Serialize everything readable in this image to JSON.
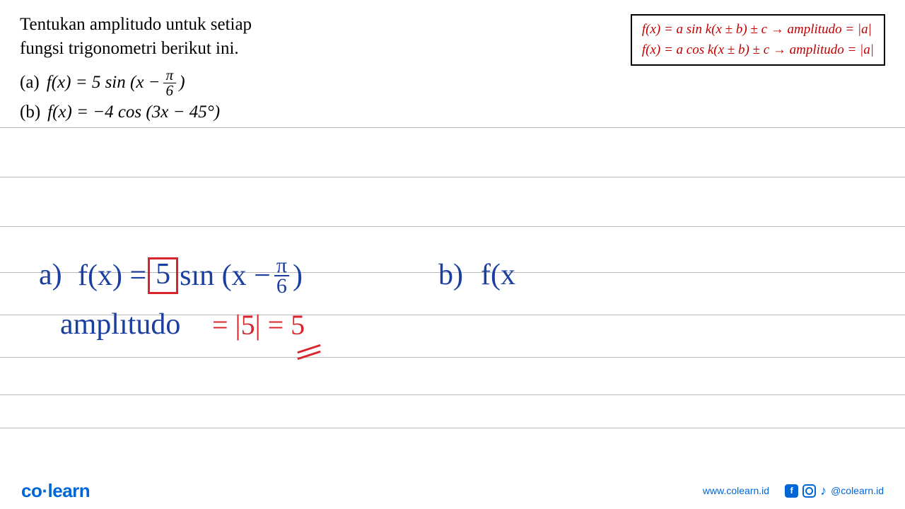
{
  "question": {
    "line1": "Tentukan amplitudo untuk setiap",
    "line2": "fungsi trigonometri berikut ini."
  },
  "formula_box": {
    "line1": "f(x) = a sin k(x ± b) ± c → amplitudo = |a|",
    "line2": "f(x) = a cos k(x ± b) ± c → amplitudo = |a|",
    "text_color": "#c00000",
    "border_color": "#000000"
  },
  "problems": {
    "a": {
      "label": "(a)",
      "expr_prefix": "f(x) = 5 sin (x − ",
      "frac_num": "π",
      "frac_den": "6",
      "expr_suffix": ")"
    },
    "b": {
      "label": "(b)",
      "expr": "f(x) = −4 cos (3x − 45°)"
    }
  },
  "handwriting": {
    "blue_color": "#1b3fa0",
    "red_color": "#d8252c",
    "a": {
      "label": "a)",
      "prefix": "f(x) =",
      "boxed": "5",
      "mid": "sın (x −",
      "frac_num": "π",
      "frac_den": "6",
      "suffix": ")"
    },
    "amplitude": {
      "label": "amplıtudo",
      "value": "= |5| = 5"
    },
    "b": {
      "label": "b)",
      "expr": "f(x"
    }
  },
  "lines": {
    "positions": [
      180,
      250,
      320,
      385,
      445,
      505,
      558,
      605
    ],
    "color": "#b8b8b8"
  },
  "footer": {
    "logo_co": "co",
    "logo_learn": "learn",
    "url": "www.colearn.id",
    "handle": "@colearn.id",
    "brand_color": "#0066d6"
  }
}
